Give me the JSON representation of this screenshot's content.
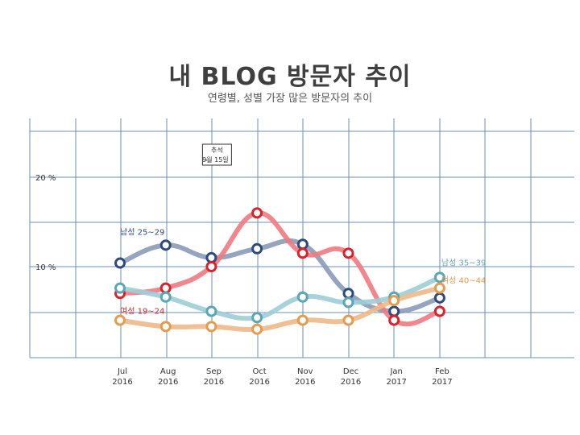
{
  "title": "내 BLOG 방문자 추이",
  "subtitle": "연령별, 성별 가장 많은 방문자의 추이",
  "chart_data": {
    "type": "line",
    "categories": [
      [
        "Jul",
        "2016"
      ],
      [
        "Aug",
        "2016"
      ],
      [
        "Sep",
        "2016"
      ],
      [
        "Oct",
        "2016"
      ],
      [
        "Nov",
        "2016"
      ],
      [
        "Dec",
        "2016"
      ],
      [
        "Jan",
        "2017"
      ],
      [
        "Feb",
        "2017"
      ]
    ],
    "y_tick_labels": [
      {
        "value": 20,
        "label": "20 %"
      },
      {
        "value": 10,
        "label": "10 %"
      }
    ],
    "ylim": [
      -10,
      30
    ],
    "grid": true,
    "annotation": {
      "line1": "추석",
      "line2": "9월 15일",
      "x_index": 2
    },
    "series": [
      {
        "name": "남성 25~29",
        "color": "#8a9ab8",
        "marker": "#2e4a7d",
        "values": [
          10.4,
          12.4,
          11.0,
          12.0,
          12.5,
          7.0,
          5.0,
          6.5
        ]
      },
      {
        "name": "여성 19~24",
        "color": "#f07a80",
        "marker": "#d8232a",
        "values": [
          7.0,
          7.6,
          10.0,
          16.0,
          11.5,
          11.5,
          4.0,
          5.0
        ]
      },
      {
        "name": "남성 35~39",
        "color": "#9fcdd6",
        "marker": "#5aa6b5",
        "values": [
          7.6,
          6.6,
          5.0,
          4.3,
          6.6,
          6.0,
          6.6,
          8.8
        ]
      },
      {
        "name": "여성 40~44",
        "color": "#f0b888",
        "marker": "#e69a4c",
        "values": [
          4.0,
          3.3,
          3.3,
          3.0,
          4.0,
          4.0,
          6.2,
          7.6
        ]
      }
    ],
    "series_labels": [
      {
        "series": 0,
        "text": "남성 25~29",
        "x_index": 0,
        "value": 13.9,
        "color": "#2e4a7d"
      },
      {
        "series": 1,
        "text": "여성 19~24",
        "x_index": 0,
        "value": 5.1,
        "color": "#d8232a"
      },
      {
        "series": 2,
        "text": "남성 35~39",
        "x_index": 7,
        "value": 10.5,
        "color": "#5aa6b5"
      },
      {
        "series": 3,
        "text": "여성 40~44",
        "x_index": 7,
        "value": 8.5,
        "color": "#e69a4c"
      }
    ]
  }
}
